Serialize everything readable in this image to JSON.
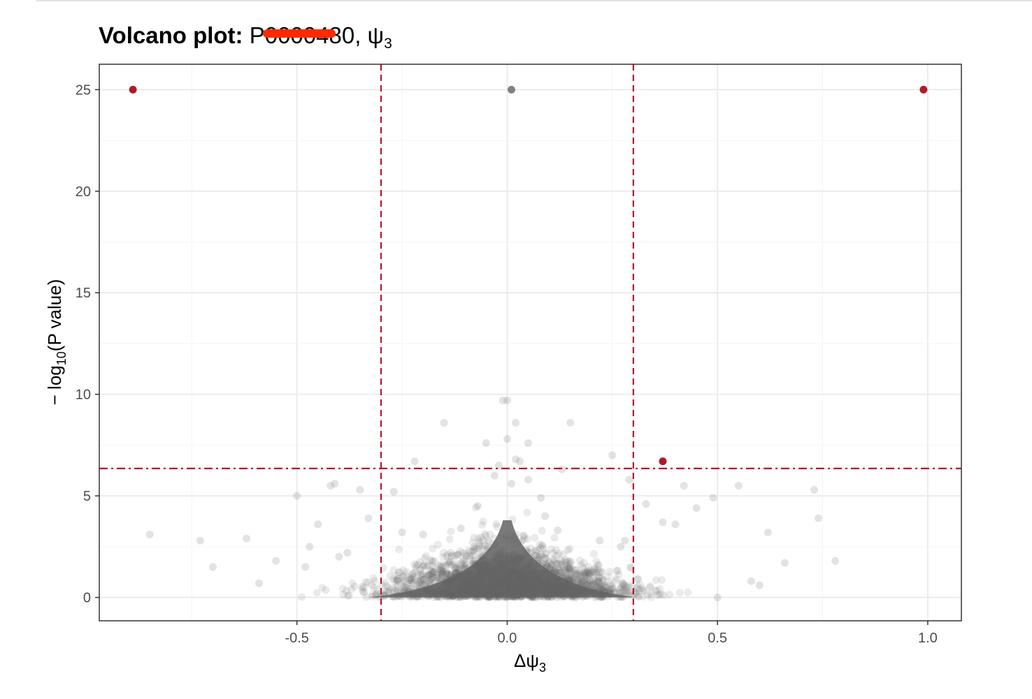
{
  "chart_data": {
    "type": "scatter",
    "title": {
      "bold_part": "Volcano plot: ",
      "redacted": "P0000",
      "rest": "480, ψ",
      "sub": "3"
    },
    "xlabel": {
      "main": "Δψ",
      "sub": "3"
    },
    "ylabel": {
      "pre": "− log",
      "sub": "10",
      "post": "(P value)"
    },
    "xlim": [
      -0.97,
      1.08
    ],
    "ylim": [
      -1.15,
      26.25
    ],
    "x_ticks": [
      -0.5,
      0.0,
      0.5,
      1.0
    ],
    "x_tick_labels": [
      "-0.5",
      "0.0",
      "0.5",
      "1.0"
    ],
    "y_ticks": [
      0,
      5,
      10,
      15,
      20,
      25
    ],
    "y_tick_labels": [
      "0",
      "5",
      "10",
      "15",
      "20",
      "25"
    ],
    "grid": true,
    "thresholds": {
      "x": [
        -0.3,
        0.3
      ],
      "y": 6.35
    },
    "colors": {
      "significant": "#b2182b",
      "not_significant": "#636363",
      "threshold_line": "#b2182b",
      "redaction": "#ff2a00",
      "grid_major": "#ebebeb",
      "grid_minor": "#f4f4f4",
      "panel_border": "#333333"
    },
    "series": [
      {
        "group": "significant",
        "x": [
          -0.89,
          0.99,
          0.37
        ],
        "y": [
          25.0,
          25.0,
          6.7
        ]
      },
      {
        "group": "not_significant",
        "x": [
          0.01,
          -0.85,
          -0.73,
          -0.7,
          -0.62,
          -0.55,
          -0.5,
          -0.45,
          -0.47,
          -0.42,
          -0.41,
          -0.48,
          -0.35,
          -0.33,
          -0.22,
          -0.27,
          -0.15,
          -0.05,
          0.0,
          -0.01,
          0.02,
          0.05,
          0.15,
          0.13,
          0.25,
          0.29,
          0.33,
          0.37,
          0.42,
          0.49,
          0.55,
          0.62,
          0.66,
          0.73,
          0.74,
          0.78,
          0.6,
          0.5,
          0.45,
          0.4,
          0.02,
          0.0,
          0.03,
          0.01,
          -0.02,
          -0.03,
          0.05,
          -0.07,
          0.08,
          0.09,
          -0.11,
          0.12,
          0.22,
          -0.2,
          -0.25,
          0.27,
          0.28,
          -0.38,
          -0.4,
          -0.59,
          0.58
        ],
        "y": [
          25.0,
          3.1,
          2.8,
          1.5,
          2.9,
          1.8,
          5.0,
          3.6,
          2.5,
          5.5,
          5.6,
          1.5,
          5.3,
          3.9,
          6.7,
          5.2,
          8.6,
          7.6,
          9.7,
          9.7,
          8.6,
          7.6,
          8.6,
          6.3,
          7.0,
          5.8,
          4.6,
          3.7,
          5.5,
          4.9,
          5.5,
          3.2,
          1.7,
          5.3,
          3.9,
          1.8,
          0.6,
          0.0,
          4.4,
          3.6,
          6.8,
          7.8,
          6.7,
          5.6,
          6.5,
          6.0,
          5.8,
          4.5,
          4.9,
          4.0,
          3.4,
          3.3,
          2.8,
          3.1,
          3.2,
          2.5,
          2.8,
          2.2,
          2.0,
          0.7,
          0.8
        ]
      }
    ]
  }
}
